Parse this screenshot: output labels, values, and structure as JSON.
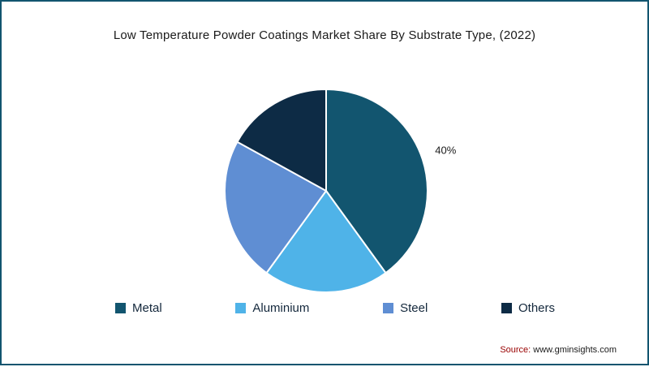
{
  "title": "Low Temperature Powder Coatings Market Share  By Substrate Type, (2022)",
  "source": {
    "label": "Source:",
    "value": "www.gminsights.com"
  },
  "chart_data": {
    "type": "pie",
    "title": "Low Temperature Powder Coatings Market Share  By Substrate Type, (2022)",
    "categories": [
      "Metal",
      "Aluminium",
      "Steel",
      "Others"
    ],
    "values": [
      40,
      20,
      23,
      17
    ],
    "colors": [
      "#12556f",
      "#4fb3e8",
      "#5f8ed3",
      "#0d2b45"
    ],
    "data_labels": [
      "40%",
      "",
      "",
      ""
    ],
    "start_angle_deg": -90,
    "direction": "clockwise",
    "slice_stroke_color": "#ffffff",
    "legend_position": "bottom",
    "border_color": "#12556f"
  }
}
